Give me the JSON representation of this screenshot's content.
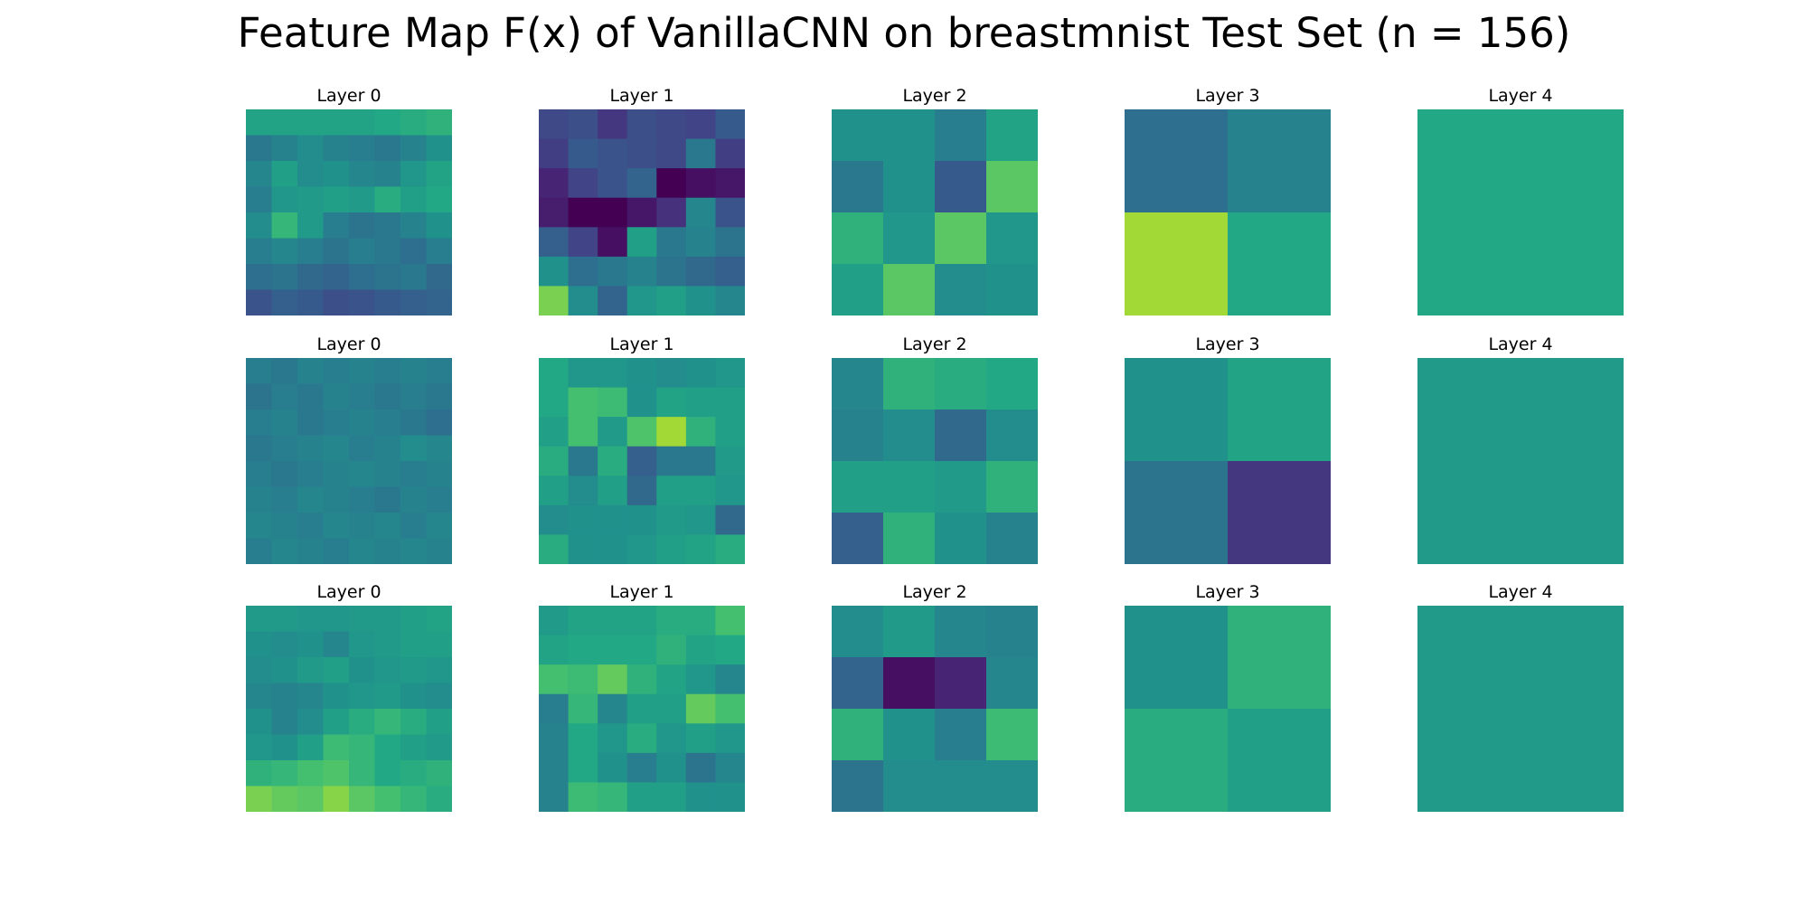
{
  "title": "Feature Map F(x) of VanillaCNN on breastmnist Test Set (n = 156)",
  "chart_data": {
    "type": "heatmap",
    "title": "Feature Map F(x) of VanillaCNN on breastmnist Test Set (n = 156)",
    "colormap": "viridis",
    "rows": 3,
    "columns": 5,
    "panels": [
      [
        {
          "title": "Layer 0",
          "size": 8,
          "values": [
            [
              0.58,
              0.58,
              0.58,
              0.58,
              0.58,
              0.6,
              0.62,
              0.64
            ],
            [
              0.4,
              0.44,
              0.48,
              0.44,
              0.42,
              0.4,
              0.44,
              0.5
            ],
            [
              0.46,
              0.56,
              0.48,
              0.5,
              0.46,
              0.44,
              0.52,
              0.58
            ],
            [
              0.42,
              0.52,
              0.54,
              0.56,
              0.54,
              0.62,
              0.56,
              0.6
            ],
            [
              0.48,
              0.66,
              0.54,
              0.42,
              0.38,
              0.4,
              0.44,
              0.5
            ],
            [
              0.42,
              0.46,
              0.42,
              0.38,
              0.42,
              0.4,
              0.36,
              0.42
            ],
            [
              0.36,
              0.38,
              0.34,
              0.32,
              0.36,
              0.38,
              0.4,
              0.34
            ],
            [
              0.26,
              0.3,
              0.28,
              0.24,
              0.26,
              0.28,
              0.3,
              0.32
            ]
          ]
        },
        {
          "title": "Layer 1",
          "size": 7,
          "values": [
            [
              0.22,
              0.24,
              0.16,
              0.24,
              0.22,
              0.2,
              0.28
            ],
            [
              0.18,
              0.28,
              0.26,
              0.24,
              0.22,
              0.4,
              0.18
            ],
            [
              0.1,
              0.2,
              0.26,
              0.32,
              0.0,
              0.04,
              0.06
            ],
            [
              0.08,
              0.0,
              0.0,
              0.06,
              0.14,
              0.46,
              0.26
            ],
            [
              0.3,
              0.2,
              0.04,
              0.56,
              0.4,
              0.44,
              0.38
            ],
            [
              0.5,
              0.36,
              0.4,
              0.44,
              0.38,
              0.34,
              0.3
            ],
            [
              0.8,
              0.48,
              0.32,
              0.52,
              0.56,
              0.5,
              0.46
            ]
          ]
        },
        {
          "title": "Layer 2",
          "size": 4,
          "values": [
            [
              0.5,
              0.5,
              0.42,
              0.58
            ],
            [
              0.4,
              0.5,
              0.28,
              0.74
            ],
            [
              0.64,
              0.52,
              0.74,
              0.52
            ],
            [
              0.56,
              0.74,
              0.48,
              0.5
            ]
          ]
        },
        {
          "title": "Layer 3",
          "size": 2,
          "values": [
            [
              0.36,
              0.44
            ],
            [
              0.86,
              0.6
            ]
          ]
        },
        {
          "title": "Layer 4",
          "size": 1,
          "values": [
            [
              0.6
            ]
          ]
        }
      ],
      [
        {
          "title": "Layer 0",
          "size": 8,
          "values": [
            [
              0.42,
              0.4,
              0.44,
              0.42,
              0.44,
              0.42,
              0.44,
              0.42
            ],
            [
              0.38,
              0.42,
              0.4,
              0.44,
              0.42,
              0.4,
              0.42,
              0.4
            ],
            [
              0.42,
              0.44,
              0.4,
              0.42,
              0.44,
              0.42,
              0.4,
              0.36
            ],
            [
              0.4,
              0.42,
              0.44,
              0.46,
              0.42,
              0.44,
              0.48,
              0.46
            ],
            [
              0.42,
              0.4,
              0.42,
              0.44,
              0.46,
              0.44,
              0.42,
              0.44
            ],
            [
              0.44,
              0.42,
              0.46,
              0.44,
              0.42,
              0.4,
              0.44,
              0.42
            ],
            [
              0.46,
              0.44,
              0.42,
              0.46,
              0.44,
              0.46,
              0.42,
              0.46
            ],
            [
              0.42,
              0.46,
              0.44,
              0.42,
              0.46,
              0.44,
              0.46,
              0.44
            ]
          ]
        },
        {
          "title": "Layer 1",
          "size": 7,
          "values": [
            [
              0.6,
              0.52,
              0.52,
              0.5,
              0.48,
              0.5,
              0.52
            ],
            [
              0.6,
              0.7,
              0.68,
              0.5,
              0.58,
              0.56,
              0.56
            ],
            [
              0.56,
              0.7,
              0.54,
              0.72,
              0.86,
              0.64,
              0.56
            ],
            [
              0.62,
              0.4,
              0.62,
              0.3,
              0.4,
              0.4,
              0.54
            ],
            [
              0.56,
              0.48,
              0.56,
              0.34,
              0.56,
              0.56,
              0.52
            ],
            [
              0.48,
              0.5,
              0.5,
              0.5,
              0.54,
              0.52,
              0.34
            ],
            [
              0.62,
              0.5,
              0.5,
              0.52,
              0.56,
              0.58,
              0.62
            ]
          ]
        },
        {
          "title": "Layer 2",
          "size": 4,
          "values": [
            [
              0.46,
              0.64,
              0.62,
              0.6
            ],
            [
              0.44,
              0.48,
              0.34,
              0.48
            ],
            [
              0.56,
              0.56,
              0.54,
              0.64
            ],
            [
              0.3,
              0.64,
              0.5,
              0.44
            ]
          ]
        },
        {
          "title": "Layer 3",
          "size": 2,
          "values": [
            [
              0.5,
              0.58
            ],
            [
              0.38,
              0.16
            ]
          ]
        },
        {
          "title": "Layer 4",
          "size": 1,
          "values": [
            [
              0.54
            ]
          ]
        }
      ],
      [
        {
          "title": "Layer 0",
          "size": 8,
          "values": [
            [
              0.54,
              0.54,
              0.52,
              0.52,
              0.54,
              0.54,
              0.56,
              0.58
            ],
            [
              0.5,
              0.48,
              0.5,
              0.46,
              0.52,
              0.54,
              0.56,
              0.56
            ],
            [
              0.48,
              0.5,
              0.54,
              0.56,
              0.5,
              0.52,
              0.54,
              0.52
            ],
            [
              0.46,
              0.44,
              0.46,
              0.5,
              0.52,
              0.54,
              0.5,
              0.48
            ],
            [
              0.5,
              0.44,
              0.48,
              0.56,
              0.62,
              0.66,
              0.62,
              0.56
            ],
            [
              0.52,
              0.5,
              0.56,
              0.68,
              0.66,
              0.6,
              0.56,
              0.54
            ],
            [
              0.64,
              0.66,
              0.7,
              0.72,
              0.66,
              0.6,
              0.62,
              0.64
            ],
            [
              0.8,
              0.76,
              0.74,
              0.82,
              0.74,
              0.7,
              0.66,
              0.62
            ]
          ]
        },
        {
          "title": "Layer 1",
          "size": 7,
          "values": [
            [
              0.54,
              0.58,
              0.58,
              0.58,
              0.62,
              0.62,
              0.7
            ],
            [
              0.58,
              0.6,
              0.6,
              0.6,
              0.64,
              0.58,
              0.6
            ],
            [
              0.7,
              0.68,
              0.76,
              0.64,
              0.58,
              0.52,
              0.46
            ],
            [
              0.42,
              0.66,
              0.46,
              0.56,
              0.56,
              0.76,
              0.7
            ],
            [
              0.44,
              0.6,
              0.52,
              0.62,
              0.52,
              0.56,
              0.52
            ],
            [
              0.44,
              0.6,
              0.5,
              0.42,
              0.5,
              0.38,
              0.46
            ],
            [
              0.44,
              0.68,
              0.66,
              0.56,
              0.56,
              0.5,
              0.5
            ]
          ]
        },
        {
          "title": "Layer 2",
          "size": 4,
          "values": [
            [
              0.48,
              0.54,
              0.46,
              0.44
            ],
            [
              0.32,
              0.04,
              0.1,
              0.46
            ],
            [
              0.64,
              0.5,
              0.42,
              0.68
            ],
            [
              0.38,
              0.48,
              0.48,
              0.48
            ]
          ]
        },
        {
          "title": "Layer 3",
          "size": 2,
          "values": [
            [
              0.5,
              0.64
            ],
            [
              0.62,
              0.56
            ]
          ]
        },
        {
          "title": "Layer 4",
          "size": 1,
          "values": [
            [
              0.54
            ]
          ]
        }
      ]
    ]
  }
}
